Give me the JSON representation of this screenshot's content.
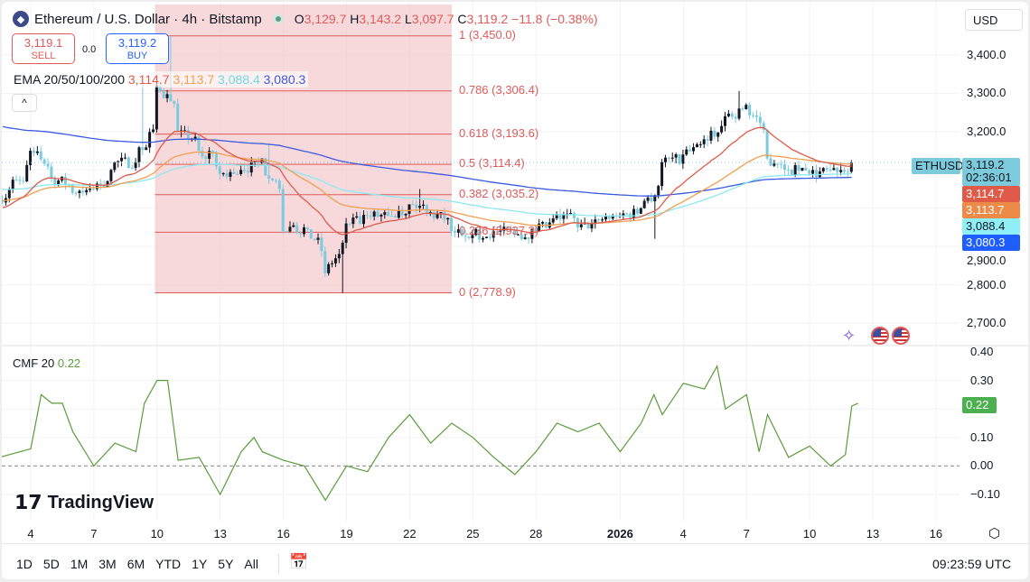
{
  "header": {
    "title": "Ethereum / U.S. Dollar · 4h · Bitstamp",
    "o_label": "O",
    "open": "3,129.7",
    "h_label": "H",
    "high": "3,143.2",
    "l_label": "L",
    "low": "3,097.7",
    "c_label": "C",
    "close": "3,119.2",
    "change": "−11.8 (−0.38%)"
  },
  "trade": {
    "sell_price": "3,119.1",
    "sell_label": "SELL",
    "spread": "0.0",
    "buy_price": "3,119.2",
    "buy_label": "BUY"
  },
  "ema": {
    "label": "EMA 20/50/100/200",
    "v20": "3,114.7",
    "v50": "3,113.7",
    "v100": "3,088.4",
    "v200": "3,080.3"
  },
  "currency": "USD",
  "price_axis": [
    {
      "v": 3400,
      "t": "3,400.0"
    },
    {
      "v": 3300,
      "t": "3,300.0"
    },
    {
      "v": 3200,
      "t": "3,200.0"
    },
    {
      "v": 2900,
      "t": "2,900.0"
    },
    {
      "v": 2800,
      "t": "2,800.0"
    },
    {
      "v": 2700,
      "t": "2,700.0"
    }
  ],
  "price_tags": {
    "symbol": "ETHUSD",
    "last": "3,119.2",
    "countdown": "02:36:01",
    "ema20": "3,114.7",
    "ema50": "3,113.7",
    "ema100": "3,088.4",
    "ema200": "3,080.3"
  },
  "colors": {
    "up": "#131722",
    "down": "#7ccbdd",
    "ema20": "#e05a4a",
    "ema50": "#f0a050",
    "ema100": "#8de8f0",
    "ema200": "#3a5ae0",
    "fib": "#e05a5a",
    "cmf": "#5b9b3c"
  },
  "cmf": {
    "label": "CMF 20",
    "value": "0.22",
    "axis": [
      {
        "v": 0.4,
        "t": "0.40"
      },
      {
        "v": 0.3,
        "t": "0.30"
      },
      {
        "v": 0.1,
        "t": "0.10"
      },
      {
        "v": 0,
        "t": "0.00"
      },
      {
        "v": -0.1,
        "t": "−0.10"
      }
    ]
  },
  "dates": [
    {
      "d": 4,
      "t": "4"
    },
    {
      "d": 7,
      "t": "7"
    },
    {
      "d": 10,
      "t": "10"
    },
    {
      "d": 13,
      "t": "13"
    },
    {
      "d": 16,
      "t": "16"
    },
    {
      "d": 19,
      "t": "19"
    },
    {
      "d": 22,
      "t": "22"
    },
    {
      "d": 25,
      "t": "25"
    },
    {
      "d": 28,
      "t": "28"
    },
    {
      "d": 32,
      "t": "2026",
      "bold": true
    },
    {
      "d": 35,
      "t": "4"
    },
    {
      "d": 38,
      "t": "7"
    },
    {
      "d": 41,
      "t": "10"
    },
    {
      "d": 44,
      "t": "13"
    },
    {
      "d": 47,
      "t": "16"
    }
  ],
  "timeframes": [
    "1D",
    "5D",
    "1M",
    "3M",
    "6M",
    "YTD",
    "1Y",
    "5Y",
    "All"
  ],
  "clock": "09:23:59 UTC",
  "logo": "TradingView",
  "chart_data": {
    "type": "candlestick",
    "title": "Ethereum / U.S. Dollar · 4h · Bitstamp",
    "x_unit": "day (Dec 2025 = 1..31, Jan 2026 = 32..)",
    "ylim": [
      2660,
      3520
    ],
    "start_open": 3020,
    "daily_closes": [
      [
        3,
        3050
      ],
      [
        4,
        3150
      ],
      [
        5,
        3080
      ],
      [
        6,
        3040
      ],
      [
        7,
        3050
      ],
      [
        8,
        3120
      ],
      [
        9,
        3120
      ],
      [
        10,
        3320
      ],
      [
        11,
        3200
      ],
      [
        12,
        3150
      ],
      [
        13,
        3090
      ],
      [
        14,
        3100
      ],
      [
        15,
        3130
      ],
      [
        16,
        2940
      ],
      [
        17,
        2950
      ],
      [
        18,
        2830
      ],
      [
        19,
        2960
      ],
      [
        20,
        2980
      ],
      [
        21,
        2980
      ],
      [
        22,
        3010
      ],
      [
        23,
        2990
      ],
      [
        24,
        2940
      ],
      [
        25,
        2930
      ],
      [
        26,
        2940
      ],
      [
        27,
        2930
      ],
      [
        28,
        2940
      ],
      [
        29,
        2985
      ],
      [
        30,
        2950
      ],
      [
        31,
        2970
      ],
      [
        32,
        2980
      ],
      [
        33,
        3000
      ],
      [
        34,
        3120
      ],
      [
        35,
        3140
      ],
      [
        36,
        3180
      ],
      [
        37,
        3240
      ],
      [
        38,
        3270
      ],
      [
        39,
        3130
      ],
      [
        40,
        3100
      ],
      [
        41,
        3090
      ],
      [
        42,
        3100
      ],
      [
        43,
        3119.2
      ]
    ],
    "extremes": [
      [
        10.7,
        3450
      ],
      [
        18.8,
        2778.9
      ],
      [
        37.6,
        3306
      ],
      [
        15.4,
        3170
      ],
      [
        22.5,
        3050
      ],
      [
        33.6,
        2920
      ],
      [
        9.4,
        3330
      ]
    ],
    "fib_retracement": {
      "from_day": 9.9,
      "to_day": 24,
      "levels": [
        {
          "r": "1",
          "p": 3450.0,
          "t": "1 (3,450.0)"
        },
        {
          "r": "0.786",
          "p": 3306.4,
          "t": "0.786 (3,306.4)"
        },
        {
          "r": "0.618",
          "p": 3193.6,
          "t": "0.618 (3,193.6)"
        },
        {
          "r": "0.5",
          "p": 3114.4,
          "t": "0.5 (3,114.4)"
        },
        {
          "r": "0.382",
          "p": 3035.2,
          "t": "0.382 (3,035.2)"
        },
        {
          "r": "0.236",
          "p": 2937.3,
          "t": "0.236 (2,937.3)"
        },
        {
          "r": "0",
          "p": 2778.9,
          "t": "0 (2,778.9)"
        }
      ]
    },
    "ema_seed": {
      "ema20": 3000,
      "ema50": 3020,
      "ema100": 3050,
      "ema200": 3215
    },
    "cmf_points": [
      [
        2.5,
        0.03
      ],
      [
        4,
        0.06
      ],
      [
        4.5,
        0.25
      ],
      [
        5,
        0.22
      ],
      [
        5.5,
        0.22
      ],
      [
        6,
        0.12
      ],
      [
        7,
        0.0
      ],
      [
        8,
        0.08
      ],
      [
        9,
        0.05
      ],
      [
        9.4,
        0.22
      ],
      [
        10,
        0.3
      ],
      [
        10.5,
        0.3
      ],
      [
        11,
        0.02
      ],
      [
        12,
        0.03
      ],
      [
        13,
        -0.1
      ],
      [
        14,
        0.05
      ],
      [
        14.6,
        0.1
      ],
      [
        15,
        0.05
      ],
      [
        16,
        0.02
      ],
      [
        17,
        0.0
      ],
      [
        18,
        -0.12
      ],
      [
        19,
        0.0
      ],
      [
        20,
        -0.02
      ],
      [
        21,
        0.1
      ],
      [
        22,
        0.18
      ],
      [
        23,
        0.08
      ],
      [
        24,
        0.15
      ],
      [
        25,
        0.1
      ],
      [
        26,
        0.03
      ],
      [
        27,
        -0.03
      ],
      [
        28,
        0.05
      ],
      [
        29,
        0.15
      ],
      [
        30,
        0.12
      ],
      [
        31,
        0.15
      ],
      [
        32,
        0.05
      ],
      [
        33,
        0.15
      ],
      [
        33.6,
        0.25
      ],
      [
        34,
        0.18
      ],
      [
        35,
        0.29
      ],
      [
        36,
        0.27
      ],
      [
        36.6,
        0.35
      ],
      [
        37,
        0.2
      ],
      [
        38,
        0.25
      ],
      [
        38.6,
        0.05
      ],
      [
        39,
        0.18
      ],
      [
        40,
        0.03
      ],
      [
        41,
        0.07
      ],
      [
        42,
        0.0
      ],
      [
        42.7,
        0.04
      ],
      [
        43,
        0.21
      ],
      [
        43.3,
        0.22
      ]
    ],
    "cmf_ylim": [
      -0.1,
      0.4
    ]
  }
}
